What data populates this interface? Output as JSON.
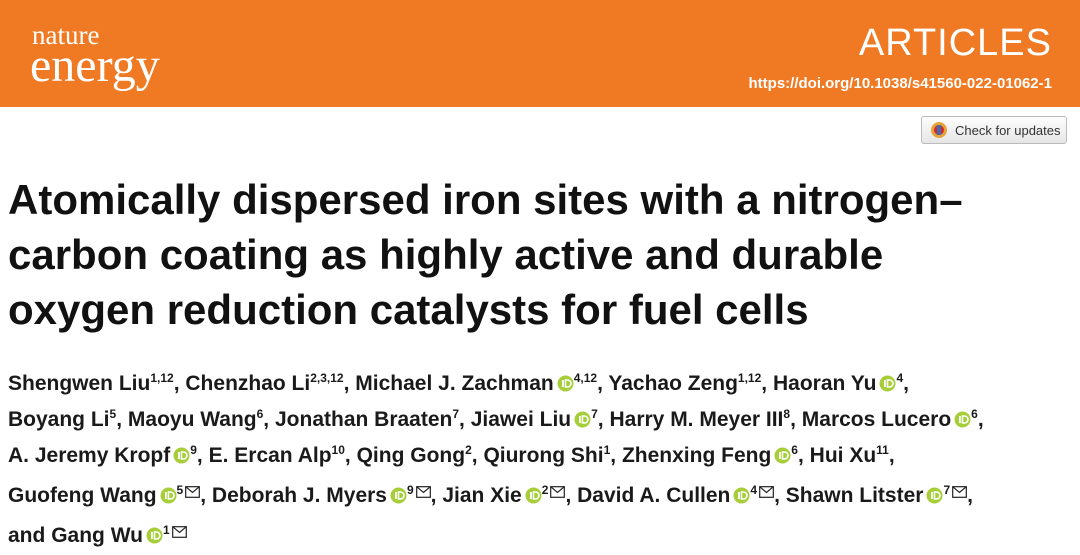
{
  "header": {
    "journal_top": "nature",
    "journal_bottom": "energy",
    "section": "ARTICLES",
    "doi": "https://doi.org/10.1038/s41560-022-01062-1"
  },
  "check_updates": "Check for updates",
  "title_lines": [
    "Atomically dispersed iron sites with a nitrogen–",
    "carbon coating as highly active and durable",
    "oxygen reduction catalysts for fuel cells"
  ],
  "separator": ",",
  "conjunction": "and",
  "author_lines": [
    [
      {
        "name": "Shengwen Liu",
        "aff": "1,12",
        "orcid": false,
        "email": false
      },
      {
        "name": "Chenzhao Li",
        "aff": "2,3,12",
        "orcid": false,
        "email": false
      },
      {
        "name": "Michael J. Zachman",
        "aff": "4,12",
        "orcid": true,
        "email": false
      },
      {
        "name": "Yachao Zeng",
        "aff": "1,12",
        "orcid": false,
        "email": false
      },
      {
        "name": "Haoran Yu",
        "aff": "4",
        "orcid": true,
        "email": false
      }
    ],
    [
      {
        "name": "Boyang Li",
        "aff": "5",
        "orcid": false,
        "email": false
      },
      {
        "name": "Maoyu Wang",
        "aff": "6",
        "orcid": false,
        "email": false
      },
      {
        "name": "Jonathan Braaten",
        "aff": "7",
        "orcid": false,
        "email": false
      },
      {
        "name": "Jiawei Liu",
        "aff": "7",
        "orcid": true,
        "email": false
      },
      {
        "name": "Harry M. Meyer III",
        "aff": "8",
        "orcid": false,
        "email": false
      },
      {
        "name": "Marcos Lucero",
        "aff": "6",
        "orcid": true,
        "email": false
      }
    ],
    [
      {
        "name": "A. Jeremy Kropf",
        "aff": "9",
        "orcid": true,
        "email": false
      },
      {
        "name": "E. Ercan Alp",
        "aff": "10",
        "orcid": false,
        "email": false
      },
      {
        "name": "Qing Gong",
        "aff": "2",
        "orcid": false,
        "email": false
      },
      {
        "name": "Qiurong Shi",
        "aff": "1",
        "orcid": false,
        "email": false
      },
      {
        "name": "Zhenxing Feng",
        "aff": "6",
        "orcid": true,
        "email": false
      },
      {
        "name": "Hui Xu",
        "aff": "11",
        "orcid": false,
        "email": false
      }
    ],
    [
      {
        "name": "Guofeng Wang",
        "aff": "5",
        "orcid": true,
        "email": true
      },
      {
        "name": "Deborah J. Myers",
        "aff": "9",
        "orcid": true,
        "email": true
      },
      {
        "name": "Jian Xie",
        "aff": "2",
        "orcid": true,
        "email": true
      },
      {
        "name": "David A. Cullen",
        "aff": "4",
        "orcid": true,
        "email": true
      },
      {
        "name": "Shawn Litster",
        "aff": "7",
        "orcid": true,
        "email": true
      }
    ],
    [
      {
        "name": "Gang Wu",
        "aff": "1",
        "orcid": true,
        "email": true
      }
    ]
  ]
}
